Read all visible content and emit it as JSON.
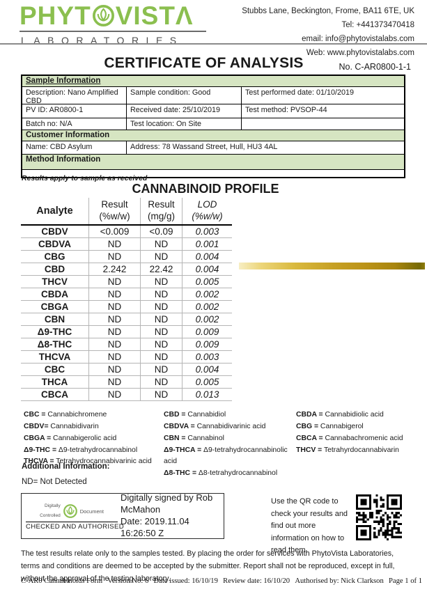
{
  "colors": {
    "brand_green": "#8bbf4f",
    "table_green": "#d6e5c2",
    "gold_start": "#f7eec3",
    "gold_end": "#8d7c0a"
  },
  "header": {
    "brand_left": "PHYT",
    "brand_right": "VISTΛ",
    "brand_sub": "LABORATORIES",
    "contact": [
      "Stubbs Lane, Beckington, Frome, BA11 6TE, UK",
      "Tel: +441373470418",
      "email: info@phytovistalabs.com",
      "Web: www.phytovistalabs.com"
    ]
  },
  "title": "CERTIFICATE OF ANALYSIS",
  "doc_no": "No. C-AR0800-1-1",
  "sample_info": {
    "header": "Sample Information",
    "rows": [
      [
        "Description: Nano Amplified CBD",
        "Sample condition: Good",
        "Test performed date: 01/10/2019"
      ],
      [
        "PV ID: AR0800-1",
        "Received date: 25/10/2019",
        "Test method: PVSOP-44"
      ],
      [
        "Batch no: N/A",
        "Test location: On Site",
        ""
      ]
    ]
  },
  "customer_info": {
    "header": "Customer Information",
    "name": "Name: CBD Asylum",
    "address": "Address: 78 Wassand Street, Hull, HU3 4AL"
  },
  "method_info": {
    "header": "Method Information"
  },
  "results_note": "Results apply to sample as received",
  "profile": {
    "title": "CANNABINOID PROFILE",
    "columns": [
      "Analyte",
      "Result (%w/w)",
      "Result (mg/g)",
      "LOD (%w/w)"
    ],
    "rows": [
      [
        "CBDV",
        "<0.009",
        "<0.09",
        "0.003"
      ],
      [
        "CBDVA",
        "ND",
        "ND",
        "0.001"
      ],
      [
        "CBG",
        "ND",
        "ND",
        "0.004"
      ],
      [
        "CBD",
        "2.242",
        "22.42",
        "0.004"
      ],
      [
        "THCV",
        "ND",
        "ND",
        "0.005"
      ],
      [
        "CBDA",
        "ND",
        "ND",
        "0.002"
      ],
      [
        "CBGA",
        "ND",
        "ND",
        "0.002"
      ],
      [
        "CBN",
        "ND",
        "ND",
        "0.002"
      ],
      [
        "Δ9-THC",
        "ND",
        "ND",
        "0.009"
      ],
      [
        "Δ8-THC",
        "ND",
        "ND",
        "0.009"
      ],
      [
        "THCVA",
        "ND",
        "ND",
        "0.003"
      ],
      [
        "CBC",
        "ND",
        "ND",
        "0.004"
      ],
      [
        "THCA",
        "ND",
        "ND",
        "0.005"
      ],
      [
        "CBCA",
        "ND",
        "ND",
        "0.013"
      ]
    ]
  },
  "legend": {
    "col1": [
      {
        "a": "CBC =",
        "n": " Cannabichromene"
      },
      {
        "a": "CBDV=",
        "n": " Cannabidivarin"
      },
      {
        "a": "CBGA =",
        "n": " Cannabigerolic acid"
      },
      {
        "a": "Δ9-THC =",
        "n": " Δ9-tetrahydrocannabinol"
      },
      {
        "a": "THCVA =",
        "n": " Tetrahydrocannabivarinic acid"
      }
    ],
    "col2": [
      {
        "a": "CBD =",
        "n": "  Cannabidiol"
      },
      {
        "a": "CBDVA =",
        "n": " Cannabidivarinic acid"
      },
      {
        "a": "CBN =",
        "n": "  Cannabinol"
      },
      {
        "a": "Δ9-THCA =",
        "n": " Δ9-tetrahydrocannabinolic acid"
      },
      {
        "a": "Δ8-THC =",
        "n": " Δ8-tetrahydrocannabinol"
      }
    ],
    "col3": [
      {
        "a": "CBDA =",
        "n": " Cannabidiolic acid"
      },
      {
        "a": "CBG =",
        "n": "  Cannabigerol"
      },
      {
        "a": "CBCA =",
        "n": " Cannabachromenic acid"
      },
      {
        "a": "THCV =",
        "n": " Tetrahyrdocannabivarin"
      }
    ]
  },
  "additional": {
    "header": "Additional Information:",
    "nd_note": "ND= Not Detected"
  },
  "signature": {
    "stamp_line1": "Digitally",
    "stamp_line2": "Controlled",
    "stamp_doc": "Document",
    "stamp_main": "CHECKED AND AUTHORISED",
    "signed_by": "Digitally signed by Rob McMahon",
    "date": "Date: 2019.11.04 16:26:50 Z"
  },
  "qr_note": "Use the QR code to check your results and find out more information on how to read them.",
  "footer": {
    "disclaimer": "The test results relate only to the samples tested.  By placing the order for services with PhytoVista Laboratories, terms and conditions are deemed to be accepted by the submitter. Report shall not be reproduced, except in full, without the approval of the testing laboratory.",
    "meta": [
      "C-AR0 Cannabinoids Form",
      "Version No:  6",
      "Date issued: 16/10/19",
      "Review  date: 16/10/20",
      "Authorised by: Nick Clarkson",
      "Page 1 of 1"
    ]
  }
}
